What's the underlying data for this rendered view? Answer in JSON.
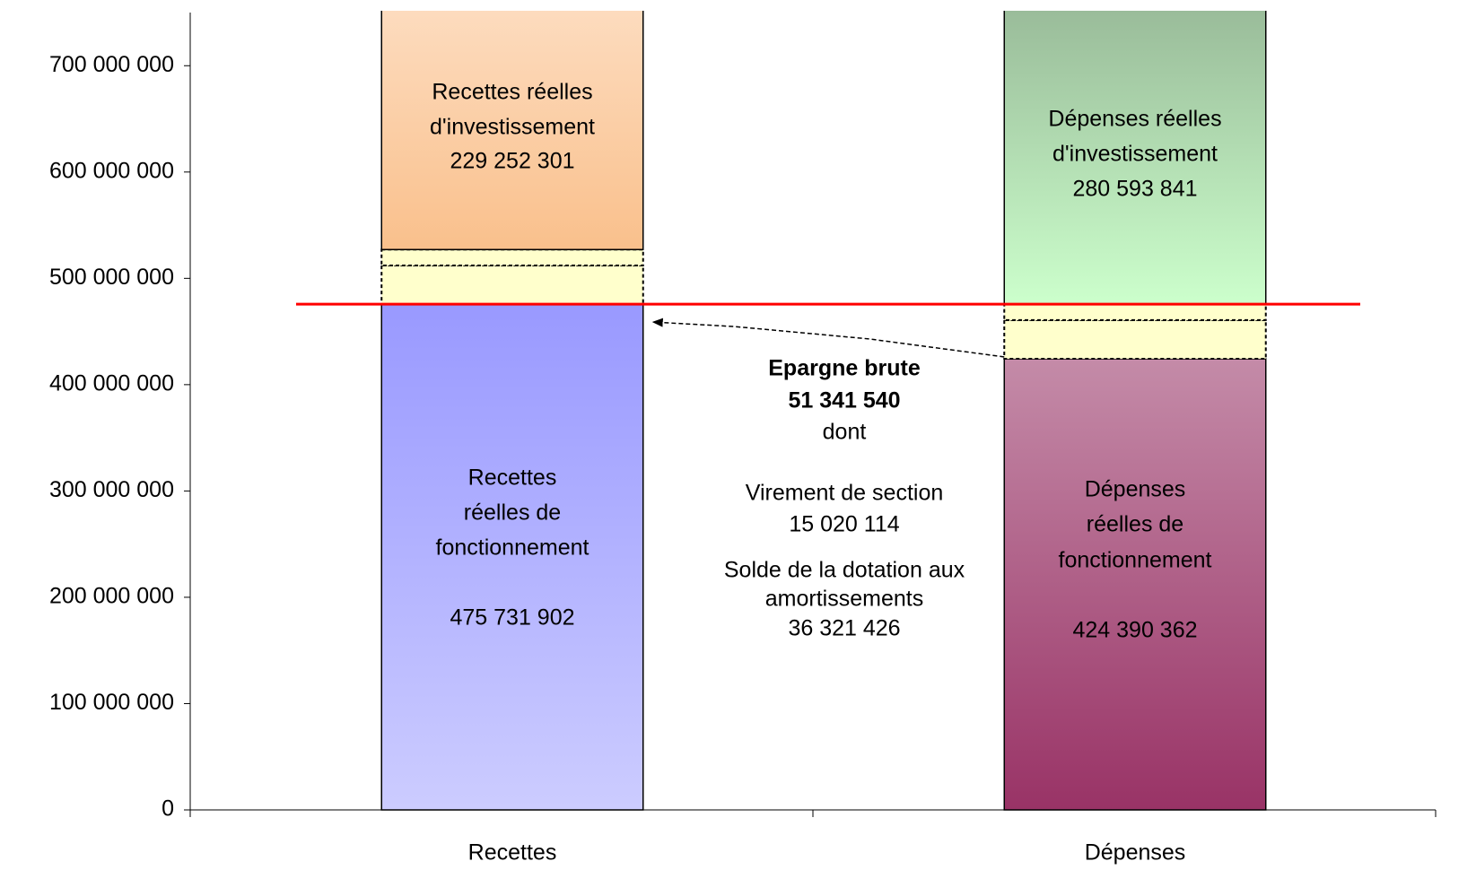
{
  "chart_data": {
    "type": "stacked_bar",
    "categories": [
      "Recettes",
      "Dépenses"
    ],
    "ylim": [
      0,
      750000000
    ],
    "yticks": [
      0,
      {
        "value": 100000000,
        "label": "100 000 000"
      },
      {
        "value": 200000000,
        "label": "200 000 000"
      },
      {
        "value": 300000000,
        "label": "300 000 000"
      },
      {
        "value": 400000000,
        "label": "400 000 000"
      },
      {
        "value": 500000000,
        "label": "500 000 000"
      },
      {
        "value": 600000000,
        "label": "600 000 000"
      },
      {
        "value": 700000000,
        "label": "700 000 000"
      }
    ],
    "series": [
      {
        "values": [
          475731902,
          424390362
        ],
        "labels": [
          [
            "Recettes",
            "réelles de",
            "fonctionnement"
          ],
          [
            "Dépenses",
            "réelles de",
            "fonctionnement"
          ]
        ],
        "value_labels": [
          "475 731 902",
          "424 390 362"
        ],
        "colors": [
          [
            "#9999ff",
            "#ccccff"
          ],
          [
            "#c48ba8",
            "#993366"
          ]
        ]
      },
      {
        "name": [
          "Solde de la dotation aux",
          "amortissements"
        ],
        "values": [
          36321426,
          36321426
        ],
        "value_label": "36 321 426",
        "color": "#ffffcc"
      },
      {
        "name": [
          "Virement de section"
        ],
        "values": [
          15020114,
          15020114
        ],
        "value_label": "15 020 114",
        "color": "#ffffcc"
      },
      {
        "values": [
          229252301,
          280593841
        ],
        "labels": [
          [
            "Recettes réelles",
            "d'investissement"
          ],
          [
            "Dépenses réelles",
            "d'investissement"
          ]
        ],
        "value_labels": [
          "229 252 301",
          "280 593 841"
        ],
        "colors": [
          [
            "#fddcbf",
            "#f9c08c"
          ],
          [
            "#99bb99",
            "#ccffcc"
          ]
        ]
      }
    ],
    "annotation": {
      "title": "Epargne brute",
      "value_label": "51 341 540",
      "subtitle": "dont"
    },
    "reference_line_color": "#ff0000"
  }
}
